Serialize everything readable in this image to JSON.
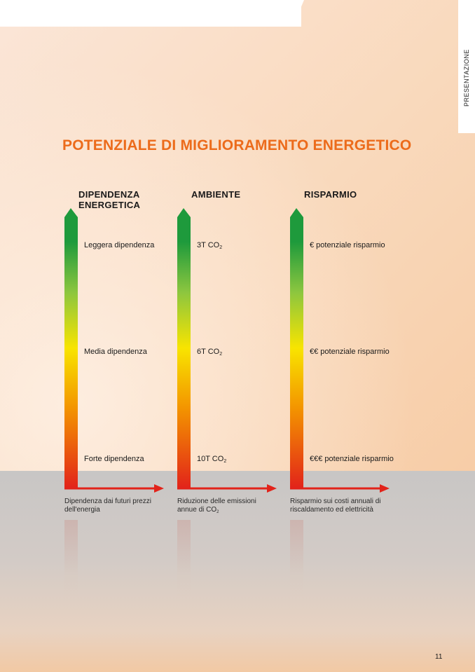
{
  "side_tab": {
    "label": "PRESENTAZIONE"
  },
  "title": "POTENZIALE DI MIGLIORAMENTO ENERGETICO",
  "columns": [
    {
      "heading": "DIPENDENZA ENERGETICA",
      "levels": [
        "Leggera dipendenza",
        "Media dipendenza",
        "Forte dipendenza"
      ],
      "caption": "Dipendenza dai futuri prezzi dell'energia"
    },
    {
      "heading": "AMBIENTE",
      "levels": [
        "3T CO",
        "6T CO",
        "10T CO"
      ],
      "level_subscript": "2",
      "caption_main": "Riduzione delle emissioni annue di CO",
      "caption_subscript": "2"
    },
    {
      "heading": "RISPARMIO",
      "levels": [
        "€ potenziale risparmio",
        "€€ potenziale risparmio",
        "€€€ potenziale risparmio"
      ],
      "caption": "Risparmio sui costi annuali di riscaldamento ed elettricità"
    }
  ],
  "colors": {
    "title": "#ec6b1b",
    "gradient_top": "#1e9a3c",
    "gradient_mid": "#f8e400",
    "gradient_bottom": "#e2231a",
    "axis_arrow": "#e2231a"
  },
  "page_number": "11"
}
